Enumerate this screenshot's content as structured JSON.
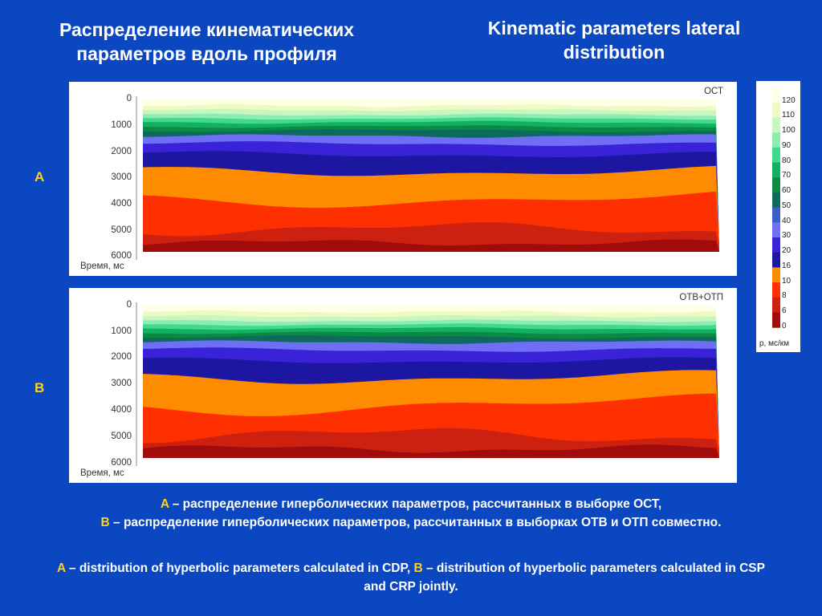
{
  "title_ru": [
    "Распределение кинематических",
    "параметров вдоль профиля"
  ],
  "title_en": [
    "Kinematic parameters lateral",
    "distribution"
  ],
  "panels": [
    {
      "label": "A",
      "tag": "ОСТ",
      "axis_label": "Время, мс",
      "ticks": [
        "0",
        "1000",
        "2000",
        "3000",
        "4000",
        "5000",
        "6000"
      ]
    },
    {
      "label": "B",
      "tag": "ОТВ+ОТП",
      "axis_label": "Время, мс",
      "ticks": [
        "0",
        "1000",
        "2000",
        "3000",
        "4000",
        "5000",
        "6000"
      ]
    }
  ],
  "legend": {
    "unit": "p, мс/км",
    "labels": [
      "120",
      "110",
      "100",
      "90",
      "80",
      "70",
      "60",
      "50",
      "40",
      "30",
      "20",
      "16",
      "10",
      "8",
      "6",
      "0"
    ],
    "colors": [
      "#ffffe6",
      "#eefbc0",
      "#c8f5c0",
      "#8cedb0",
      "#40d98e",
      "#12b060",
      "#0a8a42",
      "#0e6a5c",
      "#3a5fc8",
      "#6f6ff5",
      "#3a22d8",
      "#1d16a0",
      "#ff8c00",
      "#ff3000",
      "#cc2010",
      "#a00c0c"
    ]
  },
  "caption_ru": {
    "a_letter": "A",
    "a_text": " – распределение гиперболических параметров, рассчитанных в выборке ОСТ,",
    "b_letter": "B",
    "b_text": " – распределение гиперболических параметров, рассчитанных в выборках ОТВ и ОТП совместно."
  },
  "caption_en": {
    "a_letter": "A",
    "a_text": " – distribution of hyperbolic parameters calculated in CDP, ",
    "b_letter": "B",
    "b_text": " – distribution of hyperbolic parameters calculated in CSP and CRP jointly."
  }
}
